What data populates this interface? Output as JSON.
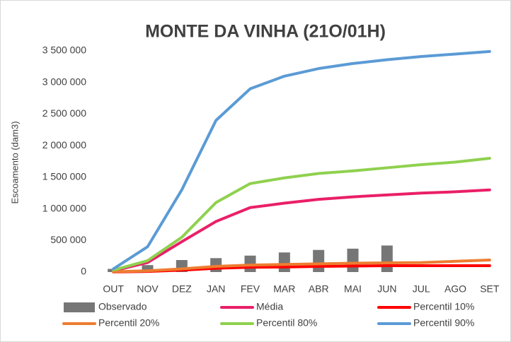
{
  "chart_data": {
    "type": "line",
    "title": "MONTE DA VINHA (21O/01H)",
    "y_label": "Escoamento (dam3)",
    "categories": [
      "OUT",
      "NOV",
      "DEZ",
      "JAN",
      "FEV",
      "MAR",
      "ABR",
      "MAI",
      "JUN",
      "JUL",
      "AGO",
      "SET"
    ],
    "ylim": [
      0,
      3500000
    ],
    "yticks": [
      0,
      {
        "value": 500000,
        "label": "500 000"
      },
      {
        "value": 1000000,
        "label": "1 000 000"
      },
      {
        "value": 1500000,
        "label": "1 500 000"
      },
      {
        "value": 2000000,
        "label": "2 000 000"
      },
      {
        "value": 2500000,
        "label": "2 500 000"
      },
      {
        "value": 3000000,
        "label": "3 000 000"
      },
      {
        "value": 3500000,
        "label": "3 500 000"
      }
    ],
    "grid": false,
    "legend": "bottom",
    "series": [
      {
        "name": "Observado",
        "type": "bar",
        "color": "#767676",
        "values": [
          50000,
          110000,
          190000,
          220000,
          260000,
          310000,
          350000,
          370000,
          420000,
          null,
          null,
          null
        ]
      },
      {
        "name": "Média",
        "color": "#ea1f67",
        "values": [
          20000,
          150000,
          480000,
          800000,
          1020000,
          1090000,
          1150000,
          1190000,
          1220000,
          1250000,
          1270000,
          1300000
        ]
      },
      {
        "name": "Percentil 10%",
        "color": "#ff0000",
        "values": [
          2000,
          10000,
          30000,
          60000,
          75000,
          80000,
          90000,
          95000,
          100000,
          100000,
          100000,
          100000
        ]
      },
      {
        "name": "Percentil 20%",
        "color": "#ed7d31",
        "values": [
          5000,
          20000,
          50000,
          90000,
          110000,
          120000,
          130000,
          140000,
          145000,
          150000,
          170000,
          190000
        ]
      },
      {
        "name": "Percentil 80%",
        "color": "#8fd14f",
        "values": [
          30000,
          180000,
          550000,
          1100000,
          1400000,
          1490000,
          1560000,
          1600000,
          1650000,
          1700000,
          1740000,
          1800000
        ]
      },
      {
        "name": "Percentil 90%",
        "color": "#5b9bd5",
        "values": [
          50000,
          400000,
          1300000,
          2400000,
          2900000,
          3100000,
          3220000,
          3300000,
          3360000,
          3410000,
          3450000,
          3490000
        ]
      }
    ]
  }
}
